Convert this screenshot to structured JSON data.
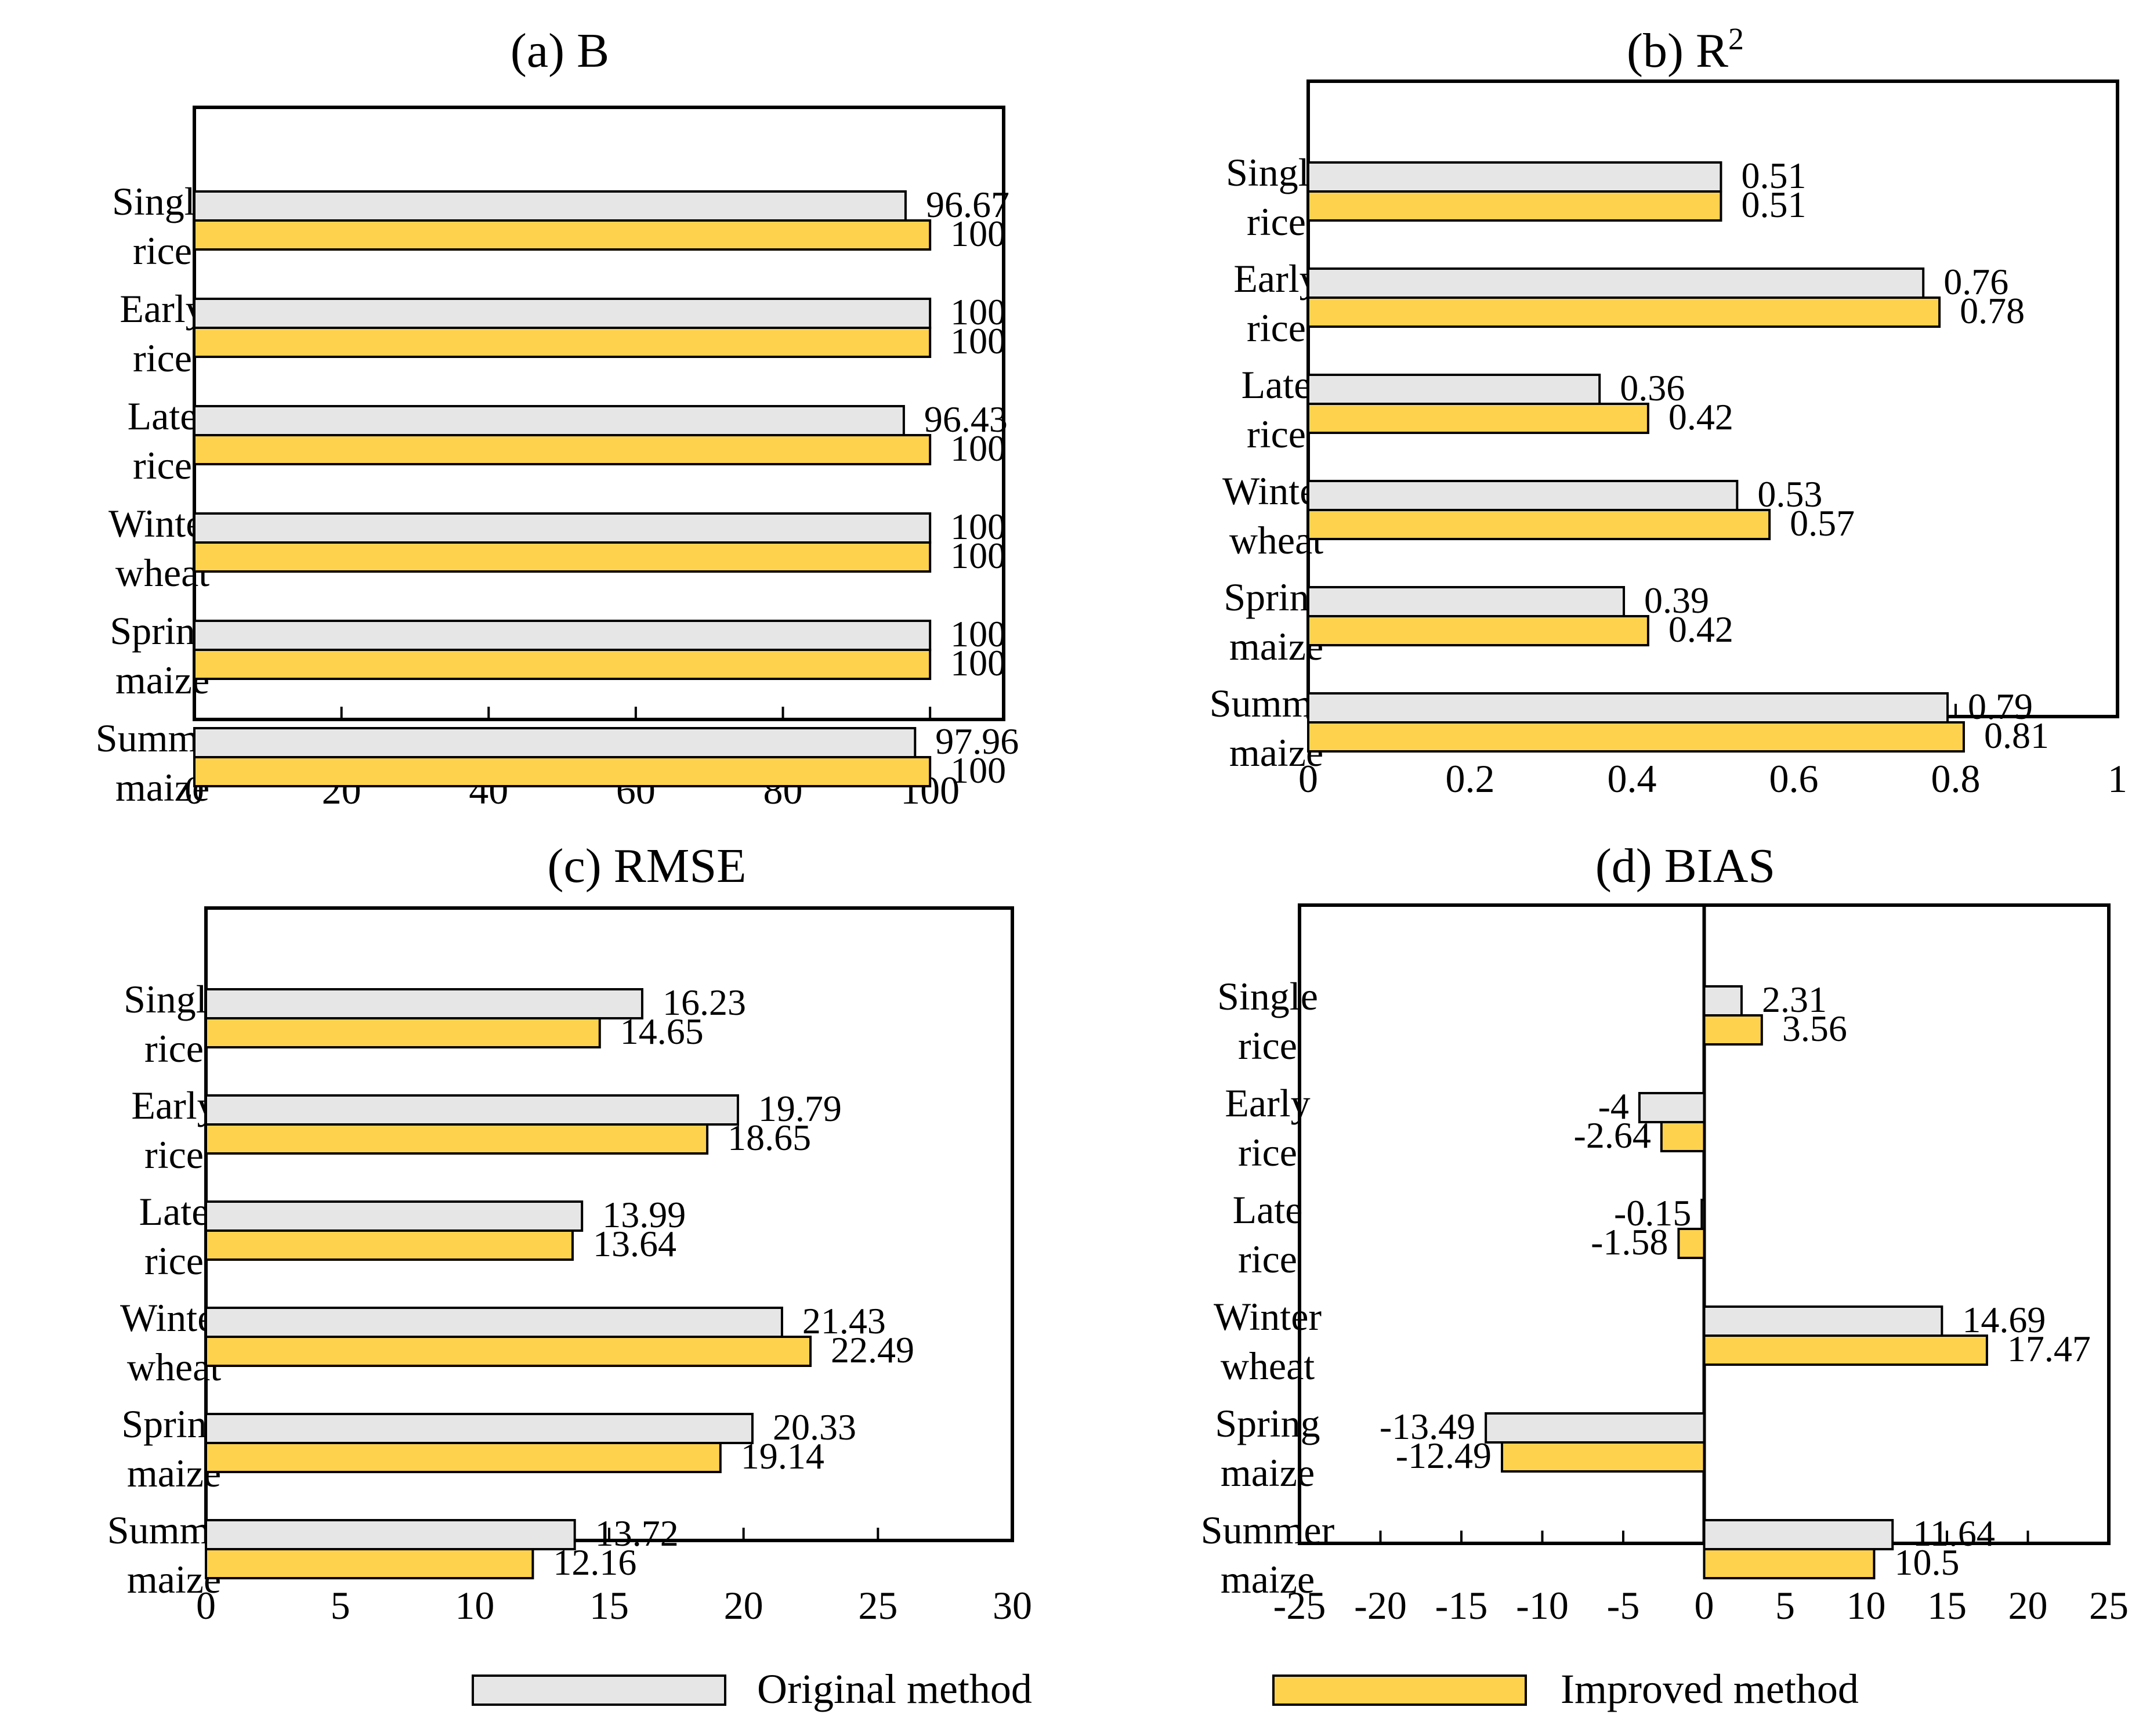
{
  "colors": {
    "original": "#e6e6e6",
    "improved": "#ffd24d",
    "stroke": "#000000"
  },
  "legend": {
    "original": "Original method",
    "improved": "Improved method"
  },
  "chart_data": [
    {
      "type": "bar",
      "title_prefix": "(a) ",
      "title_main": "B",
      "title_sup": "",
      "categories": [
        [
          "Single",
          "rice"
        ],
        [
          "Early",
          "rice"
        ],
        [
          "Late",
          "rice"
        ],
        [
          "Winter",
          "wheat"
        ],
        [
          "Spring",
          "maize"
        ],
        [
          "Summer",
          "maize"
        ]
      ],
      "series": [
        {
          "name": "Original method",
          "values": [
            96.67,
            100,
            96.43,
            100,
            100,
            97.96
          ],
          "labels": [
            "96.67",
            "100",
            "96.43",
            "100",
            "100",
            "97.96"
          ]
        },
        {
          "name": "Improved method",
          "values": [
            100,
            100,
            100,
            100,
            100,
            100
          ],
          "labels": [
            "100",
            "100",
            "100",
            "100",
            "100",
            "100"
          ]
        }
      ],
      "xlim": [
        0,
        110
      ],
      "xticks": [
        0,
        20,
        40,
        60,
        80,
        100
      ],
      "xtick_labels": [
        "0",
        "20",
        "40",
        "60",
        "80",
        "100"
      ]
    },
    {
      "type": "bar",
      "title_prefix": "(b) ",
      "title_main": "R",
      "title_sup": "2",
      "categories": [
        [
          "Single",
          "rice"
        ],
        [
          "Early",
          "rice"
        ],
        [
          "Late",
          "rice"
        ],
        [
          "Winter",
          "wheat"
        ],
        [
          "Spring",
          "maize"
        ],
        [
          "Summer",
          "maize"
        ]
      ],
      "series": [
        {
          "name": "Original method",
          "values": [
            0.51,
            0.76,
            0.36,
            0.53,
            0.39,
            0.79
          ],
          "labels": [
            "0.51",
            "0.76",
            "0.36",
            "0.53",
            "0.39",
            "0.79"
          ]
        },
        {
          "name": "Improved method",
          "values": [
            0.51,
            0.78,
            0.42,
            0.57,
            0.42,
            0.81
          ],
          "labels": [
            "0.51",
            "0.78",
            "0.42",
            "0.57",
            "0.42",
            "0.81"
          ]
        }
      ],
      "xlim": [
        0,
        1
      ],
      "xticks": [
        0,
        0.2,
        0.4,
        0.6,
        0.8,
        1
      ],
      "xtick_labels": [
        "0",
        "0.2",
        "0.4",
        "0.6",
        "0.8",
        "1"
      ]
    },
    {
      "type": "bar",
      "title_prefix": "(c) ",
      "title_main": "RMSE",
      "title_sup": "",
      "categories": [
        [
          "Single",
          "rice"
        ],
        [
          "Early",
          "rice"
        ],
        [
          "Late",
          "rice"
        ],
        [
          "Winter",
          "wheat"
        ],
        [
          "Spring",
          "maize"
        ],
        [
          "Summer",
          "maize"
        ]
      ],
      "series": [
        {
          "name": "Original method",
          "values": [
            16.23,
            19.79,
            13.99,
            21.43,
            20.33,
            13.72
          ],
          "labels": [
            "16.23",
            "19.79",
            "13.99",
            "21.43",
            "20.33",
            "13.72"
          ]
        },
        {
          "name": "Improved method",
          "values": [
            14.65,
            18.65,
            13.64,
            22.49,
            19.14,
            12.16
          ],
          "labels": [
            "14.65",
            "18.65",
            "13.64",
            "22.49",
            "19.14",
            "12.16"
          ]
        }
      ],
      "xlim": [
        0,
        30
      ],
      "xticks": [
        0,
        5,
        10,
        15,
        20,
        25,
        30
      ],
      "xtick_labels": [
        "0",
        "5",
        "10",
        "15",
        "20",
        "25",
        "30"
      ]
    },
    {
      "type": "bar",
      "title_prefix": "(d) ",
      "title_main": "BIAS",
      "title_sup": "",
      "categories": [
        [
          "Single",
          "rice"
        ],
        [
          "Early",
          "rice"
        ],
        [
          "Late",
          "rice"
        ],
        [
          "Winter",
          "wheat"
        ],
        [
          "Spring",
          "maize"
        ],
        [
          "Summer",
          "maize"
        ]
      ],
      "series": [
        {
          "name": "Original method",
          "values": [
            2.31,
            -4,
            -0.15,
            14.69,
            -13.49,
            11.64
          ],
          "labels": [
            "2.31",
            "-4",
            "-0.15",
            "14.69",
            "-13.49",
            "11.64"
          ]
        },
        {
          "name": "Improved method",
          "values": [
            3.56,
            -2.64,
            -1.58,
            17.47,
            -12.49,
            10.5
          ],
          "labels": [
            "3.56",
            "-2.64",
            "-1.58",
            "17.47",
            "-12.49",
            "10.5"
          ]
        }
      ],
      "xlim": [
        -25,
        25
      ],
      "xticks": [
        -25,
        -20,
        -15,
        -10,
        -5,
        0,
        5,
        10,
        15,
        20,
        25
      ],
      "xtick_labels": [
        "-25",
        "-20",
        "-15",
        "-10",
        "-5",
        "0",
        "5",
        "10",
        "15",
        "20",
        "25"
      ]
    }
  ]
}
